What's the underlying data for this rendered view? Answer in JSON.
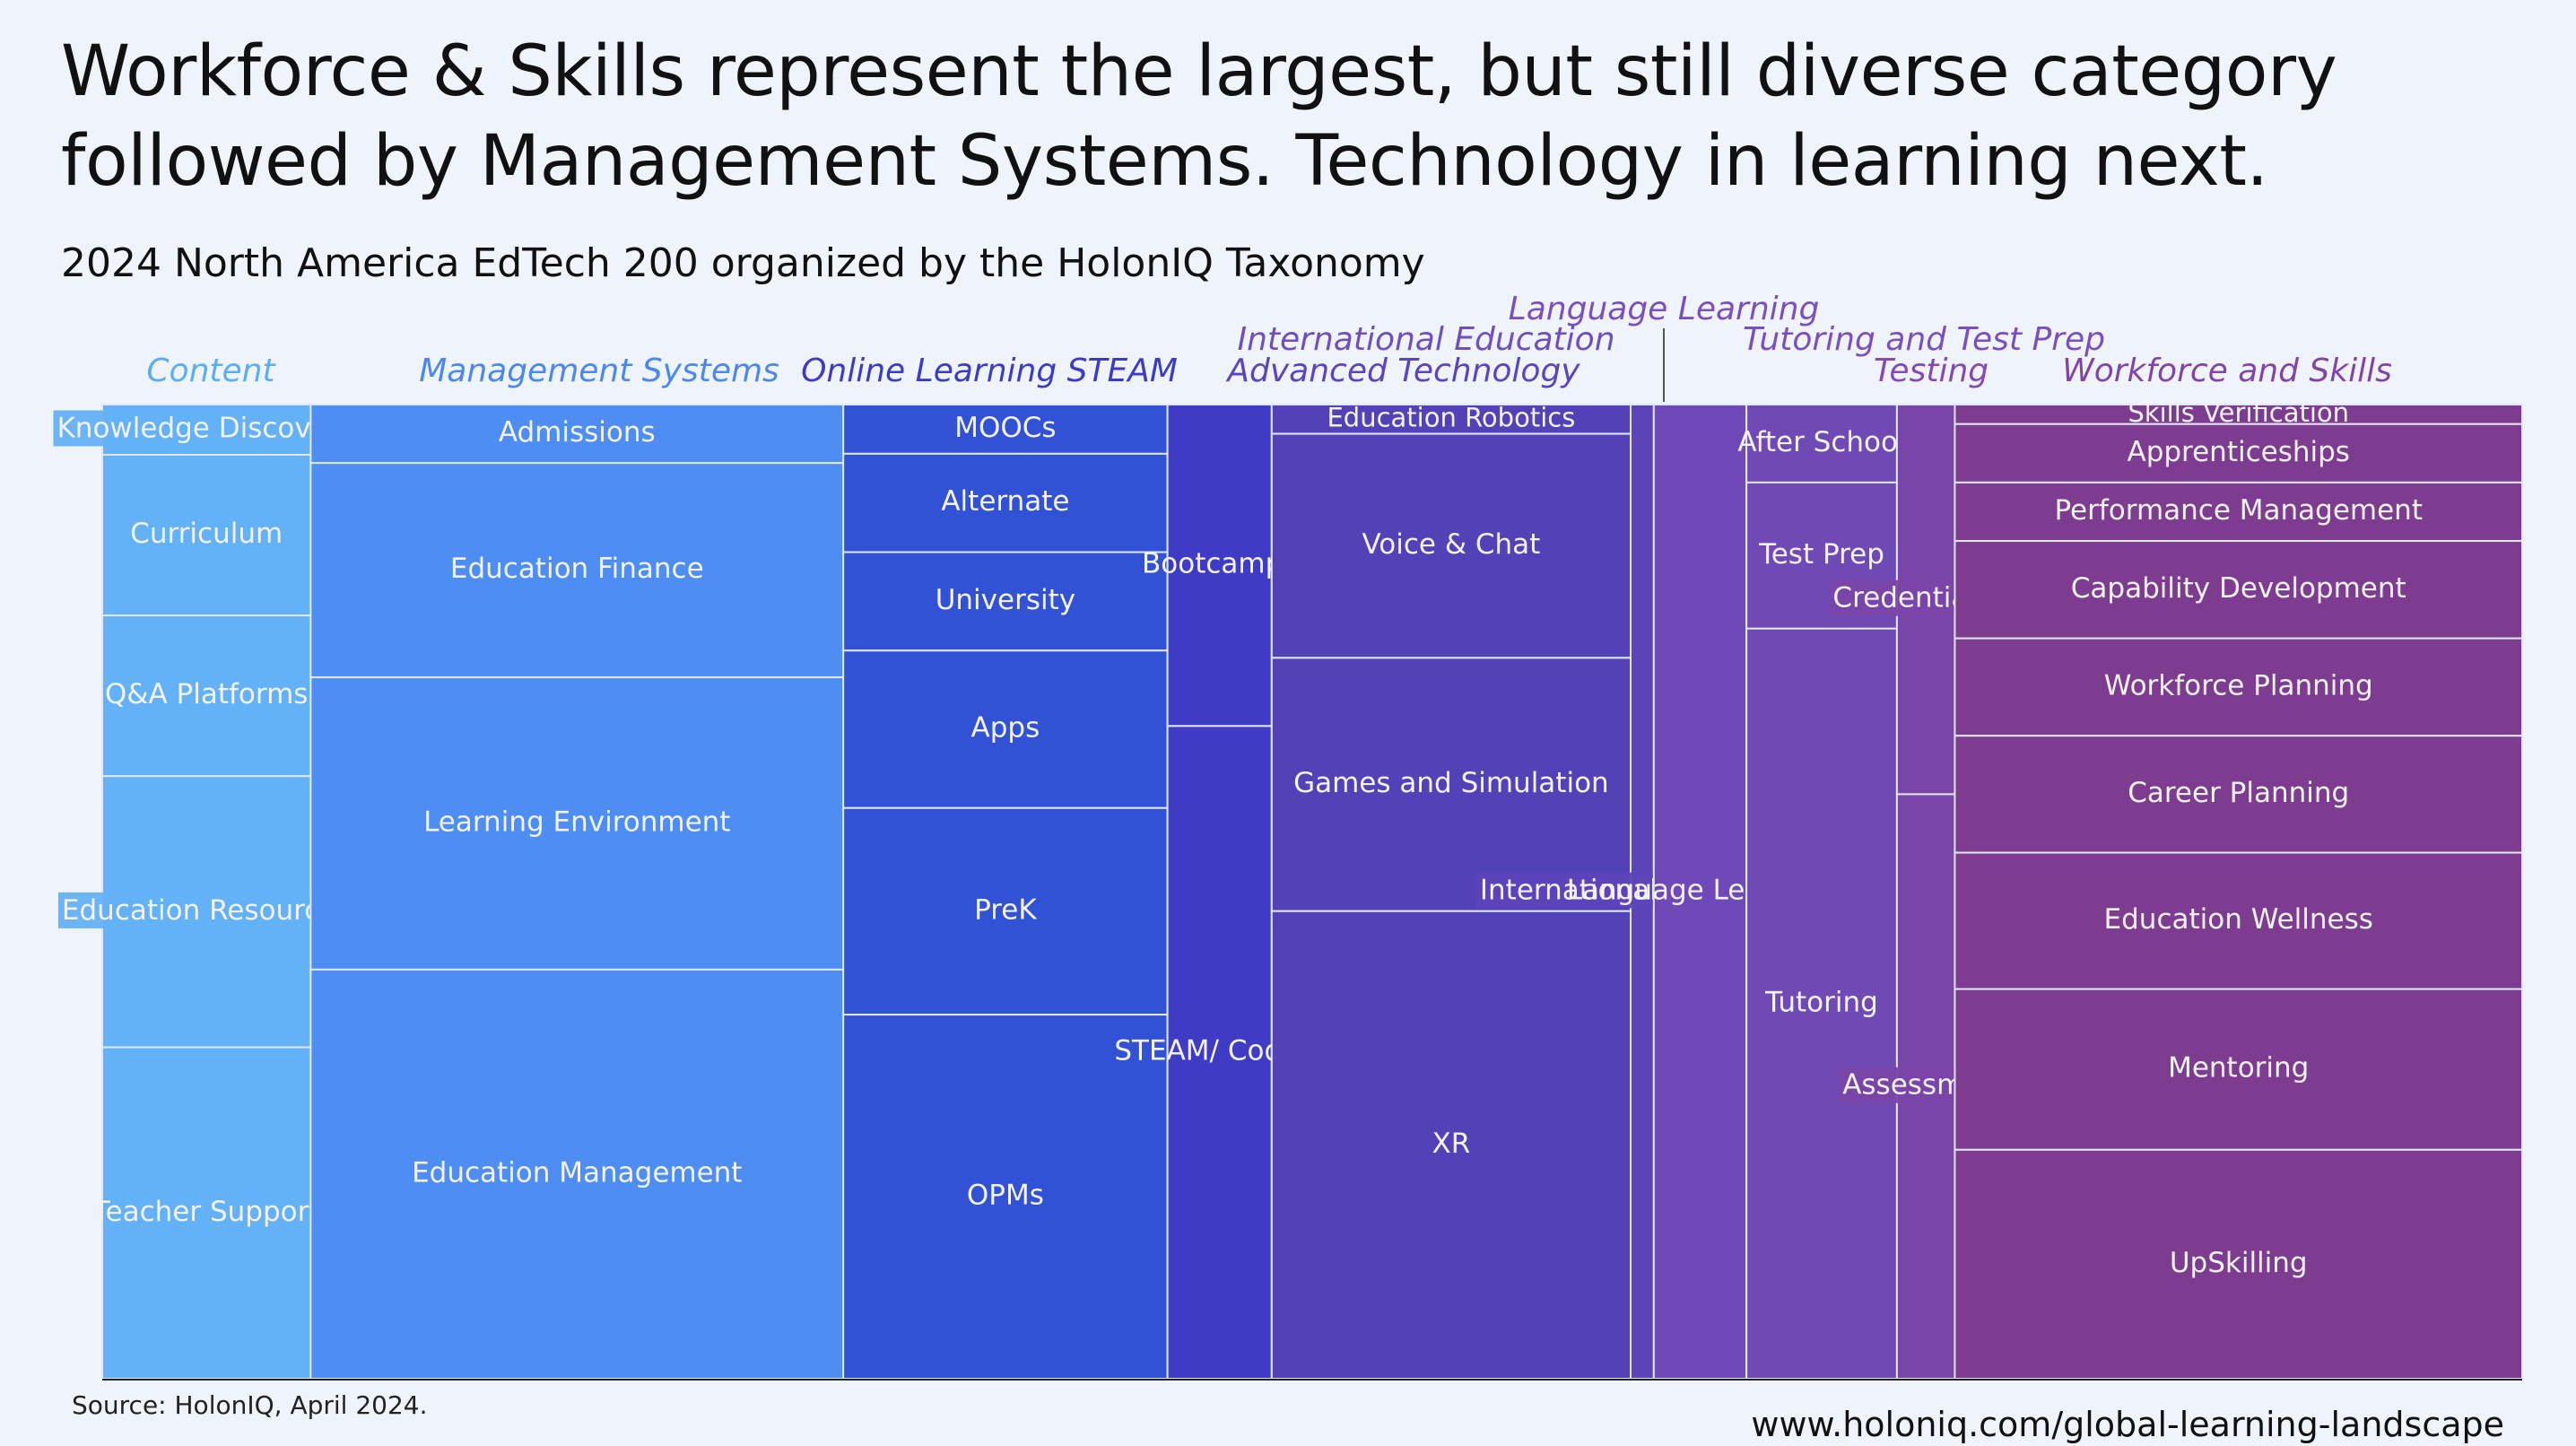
{
  "header": {
    "title_line1": "Workforce & Skills represent the largest, but still diverse category",
    "title_line2": "followed by Management Systems. Technology in learning next.",
    "subtitle": "2024 North America EdTech 200 organized by the HolonIQ Taxonomy"
  },
  "footer": {
    "source": "Source: HolonIQ, April 2024.",
    "url": "www.holoniq.com/global-learning-landscape"
  },
  "chart_data": {
    "type": "treemap",
    "title": "2024 North America EdTech 200 organized by the HolonIQ Taxonomy",
    "value_unit": "share of company count, estimated from tile area (relative)",
    "categories": [
      {
        "name": "Content",
        "label": "Content",
        "color": "#63b1f7",
        "header_color": "#5aaef5",
        "value": 9.0,
        "children": [
          {
            "name": "Knowledge Discovery",
            "value": 5
          },
          {
            "name": "Curriculum",
            "value": 16
          },
          {
            "name": "Q&A Platforms",
            "value": 16
          },
          {
            "name": "Education Resources",
            "value": 27
          },
          {
            "name": "Teacher Support",
            "value": 33
          }
        ]
      },
      {
        "name": "Management Systems",
        "label": "Management Systems",
        "color": "#4e8df2",
        "header_color": "#4a87ef",
        "value": 23.0,
        "children": [
          {
            "name": "Admissions",
            "value": 6
          },
          {
            "name": "Education Finance",
            "value": 22
          },
          {
            "name": "Learning Environment",
            "value": 30
          },
          {
            "name": "Education Management",
            "value": 42
          }
        ]
      },
      {
        "name": "Online Learning STEAM",
        "label": "Online Learning STEAM",
        "color": "#3252d6",
        "header_color": "#3b3cc6",
        "value": 14.0,
        "children": [
          {
            "name": "MOOCs",
            "value": 5
          },
          {
            "name": "Alternate",
            "value": 10
          },
          {
            "name": "University",
            "value": 10
          },
          {
            "name": "Apps",
            "value": 16
          },
          {
            "name": "PreK",
            "value": 21
          },
          {
            "name": "OPMs",
            "value": 37
          }
        ]
      },
      {
        "name": "STEAM",
        "label": "",
        "color": "#3f3bc4",
        "header_color": "#3b3cc6",
        "value": 4.5,
        "children": [
          {
            "name": "Bootcamps",
            "value": 33
          },
          {
            "name": "STEAM/ Coding",
            "value": 67
          }
        ]
      },
      {
        "name": "Advanced Technology",
        "label": "Advanced Technology",
        "color": "#5341b8",
        "header_color": "#5a44c0",
        "value": 15.5,
        "children": [
          {
            "name": "Education Robotics",
            "value": 3
          },
          {
            "name": "Voice & Chat",
            "value": 23
          },
          {
            "name": "Games and Simulation",
            "value": 26
          },
          {
            "name": "XR",
            "value": 48
          }
        ]
      },
      {
        "name": "International Education",
        "label": "International Education",
        "color": "#5c44b8",
        "header_color": "#6e4ec0",
        "value": 1.0,
        "children": [
          {
            "name": "International Education",
            "value": 100
          }
        ]
      },
      {
        "name": "Language Learning",
        "label": "Language Learning",
        "color": "#7049b8",
        "header_color": "#7b4fc0",
        "value": 4.0,
        "children": [
          {
            "name": "Language Learning",
            "value": 100
          }
        ]
      },
      {
        "name": "Tutoring and Test Prep",
        "label": "Tutoring and Test Prep",
        "color": "#6f4ab5",
        "header_color": "#7b4fc0",
        "value": 6.5,
        "children": [
          {
            "name": "After School",
            "value": 8
          },
          {
            "name": "Test Prep",
            "value": 15
          },
          {
            "name": "Tutoring",
            "value": 77
          }
        ]
      },
      {
        "name": "Testing",
        "label": "Testing",
        "color": "#7a45a8",
        "header_color": "#8449b5",
        "value": 2.5,
        "children": [
          {
            "name": "Credentialing",
            "value": 40
          },
          {
            "name": "Assessment",
            "value": 60
          }
        ]
      },
      {
        "name": "Workforce and Skills",
        "label": "Workforce and Skills",
        "color": "#7d3c8f",
        "header_color": "#8244a8",
        "value": 24.5,
        "children": [
          {
            "name": "Skills Verification",
            "value": 2
          },
          {
            "name": "Apprenticeships",
            "value": 6
          },
          {
            "name": "Performance Management",
            "value": 6
          },
          {
            "name": "Capability Development",
            "value": 10
          },
          {
            "name": "Workforce Planning",
            "value": 10
          },
          {
            "name": "Career Planning",
            "value": 12
          },
          {
            "name": "Education Wellness",
            "value": 14
          },
          {
            "name": "Mentoring",
            "value": 16.5
          },
          {
            "name": "UpSkilling",
            "value": 23.5
          }
        ]
      }
    ],
    "tile_border_color": "#dfe7fa",
    "label_color": "#f2f2f8"
  }
}
